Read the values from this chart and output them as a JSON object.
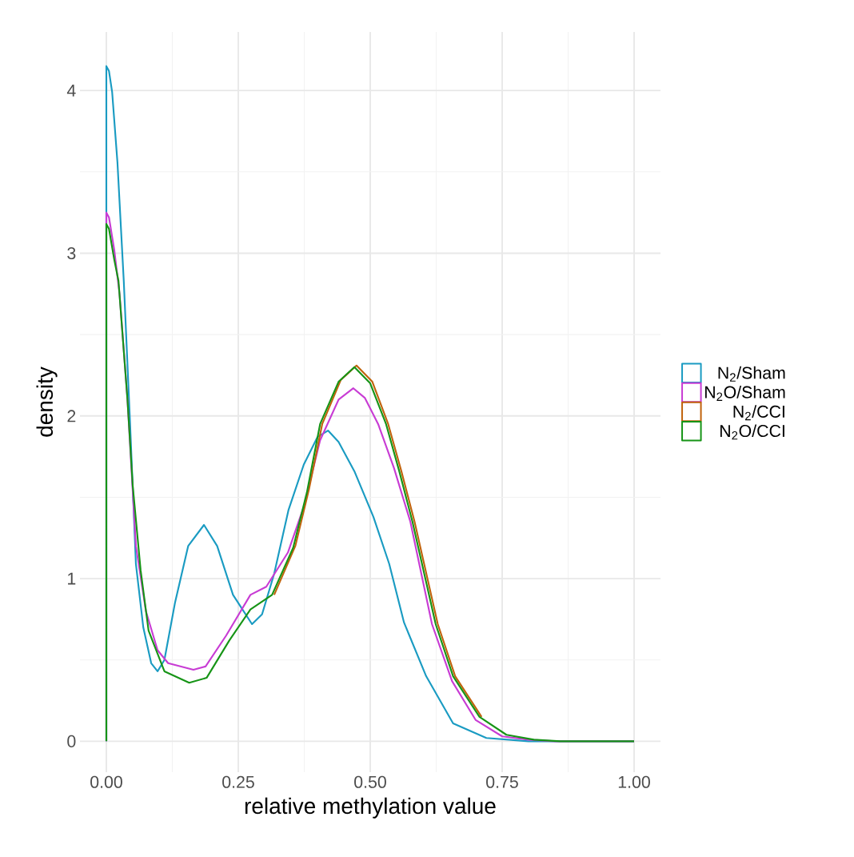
{
  "chart_data": {
    "type": "line",
    "xlabel": "relative methylation value",
    "ylabel": "density",
    "xlim": [
      -0.05,
      1.05
    ],
    "ylim": [
      -0.19,
      4.36
    ],
    "xticks": [
      {
        "value": 0,
        "label": "0.00"
      },
      {
        "value": 0.25,
        "label": "0.25"
      },
      {
        "value": 0.5,
        "label": "0.50"
      },
      {
        "value": 0.75,
        "label": "0.75"
      },
      {
        "value": 1,
        "label": "1.00"
      }
    ],
    "yticks": [
      0,
      1,
      2,
      3,
      4
    ],
    "grid": true,
    "legend": "right",
    "line_style": "solid",
    "series": [
      {
        "name": "N$_{2}$/Sham",
        "color": "#1a9bc2",
        "x": [
          0,
          0,
          0.005,
          0.011,
          0.021,
          0.033,
          0.045,
          0.056,
          0.07,
          0.085,
          0.097,
          0.11,
          0.13,
          0.155,
          0.185,
          0.21,
          0.24,
          0.276,
          0.295,
          0.318,
          0.345,
          0.374,
          0.4,
          0.42,
          0.44,
          0.47,
          0.506,
          0.536,
          0.564,
          0.606,
          0.657,
          0.72,
          0.8,
          1.0
        ],
        "values": [
          0,
          4.15,
          4.12,
          3.99,
          3.56,
          2.83,
          1.95,
          1.09,
          0.7,
          0.48,
          0.43,
          0.5,
          0.85,
          1.2,
          1.33,
          1.2,
          0.9,
          0.72,
          0.78,
          1.03,
          1.42,
          1.7,
          1.87,
          1.91,
          1.84,
          1.66,
          1.38,
          1.09,
          0.73,
          0.4,
          0.11,
          0.02,
          0,
          0
        ]
      },
      {
        "name": "N$_{2}$O/Sham",
        "color": "#c83cd4",
        "x": [
          0,
          0,
          0.005,
          0.015,
          0.025,
          0.04,
          0.056,
          0.075,
          0.097,
          0.117,
          0.165,
          0.188,
          0.227,
          0.273,
          0.303,
          0.344,
          0.375,
          0.405,
          0.44,
          0.468,
          0.49,
          0.515,
          0.545,
          0.576,
          0.617,
          0.655,
          0.7,
          0.75,
          0.8,
          0.85,
          1.0
        ],
        "values": [
          0,
          3.25,
          3.22,
          3.02,
          2.75,
          2.1,
          1.2,
          0.8,
          0.56,
          0.48,
          0.44,
          0.46,
          0.65,
          0.9,
          0.95,
          1.16,
          1.45,
          1.85,
          2.1,
          2.17,
          2.11,
          1.95,
          1.68,
          1.35,
          0.72,
          0.37,
          0.13,
          0.03,
          0.01,
          0,
          0
        ]
      },
      {
        "name": "N$_{2}$/CCI",
        "color": "#c0630c",
        "x": [
          0.318,
          0.358,
          0.384,
          0.409,
          0.444,
          0.474,
          0.504,
          0.534,
          0.559,
          0.584,
          0.628,
          0.661,
          0.711
        ],
        "values": [
          0.9,
          1.2,
          1.55,
          1.95,
          2.22,
          2.31,
          2.21,
          1.95,
          1.66,
          1.35,
          0.72,
          0.4,
          0.15
        ]
      },
      {
        "name": "N$_{2}$O/CCI",
        "color": "#169416",
        "x": [
          0,
          0,
          0.005,
          0.015,
          0.023,
          0.04,
          0.05,
          0.065,
          0.08,
          0.11,
          0.157,
          0.19,
          0.233,
          0.273,
          0.314,
          0.354,
          0.38,
          0.405,
          0.44,
          0.47,
          0.5,
          0.53,
          0.555,
          0.58,
          0.624,
          0.657,
          0.707,
          0.758,
          0.81,
          0.86,
          1.0
        ],
        "values": [
          0,
          3.18,
          3.15,
          2.96,
          2.83,
          2.1,
          1.57,
          1.05,
          0.68,
          0.43,
          0.36,
          0.39,
          0.62,
          0.81,
          0.9,
          1.19,
          1.53,
          1.95,
          2.21,
          2.3,
          2.2,
          1.95,
          1.66,
          1.35,
          0.72,
          0.4,
          0.15,
          0.04,
          0.01,
          0,
          0
        ]
      }
    ]
  }
}
